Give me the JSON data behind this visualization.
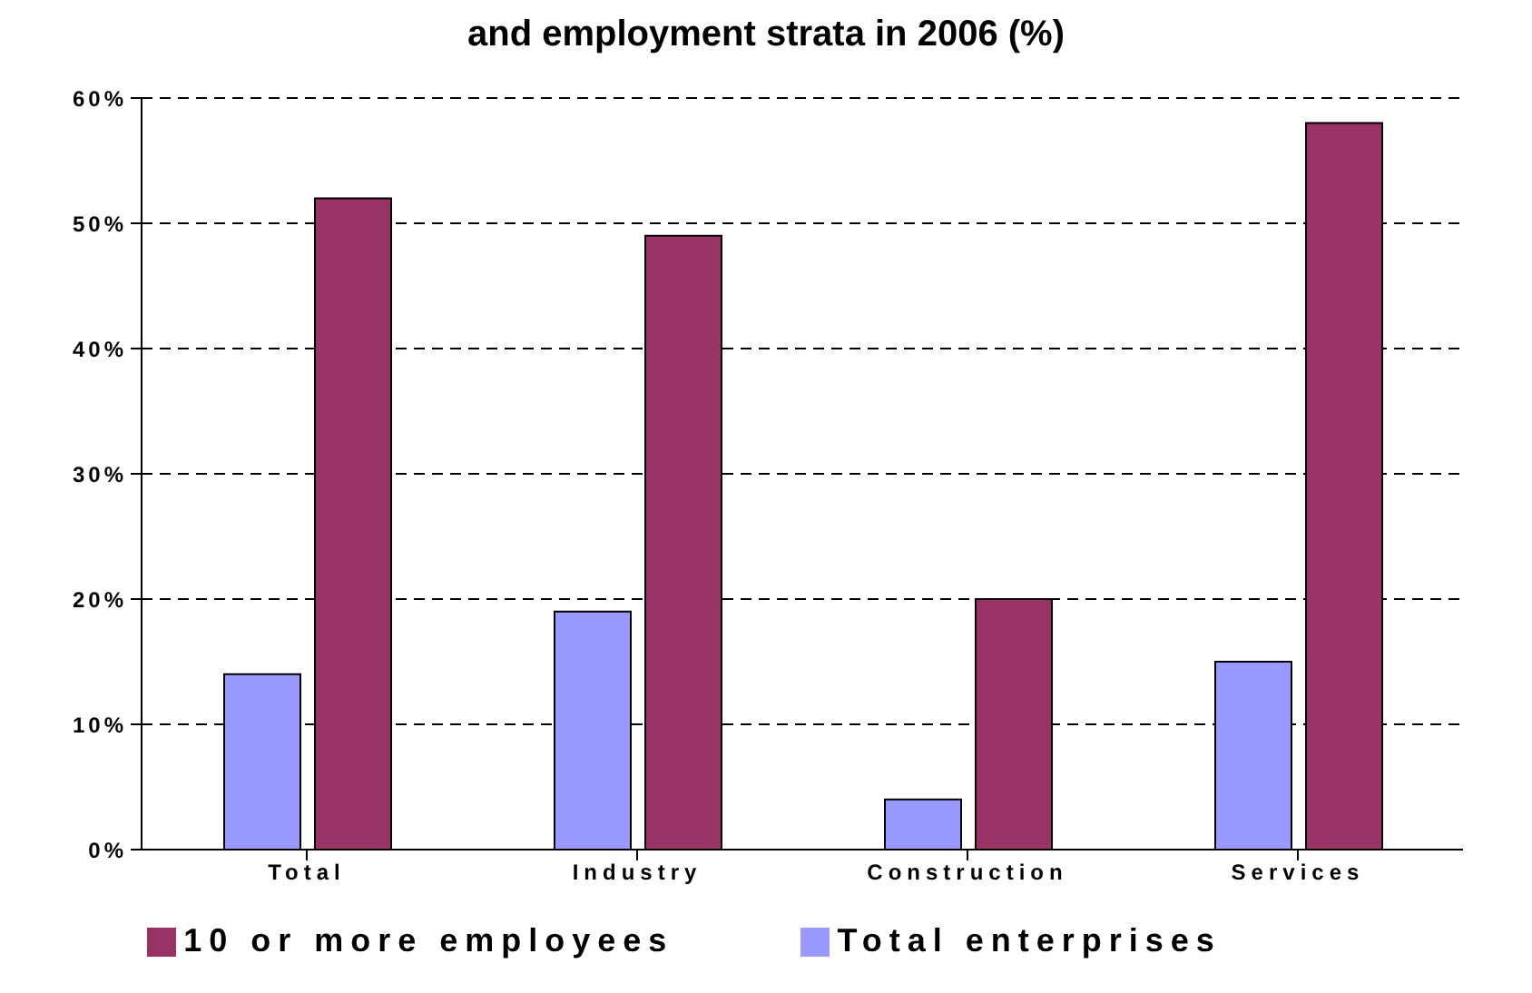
{
  "chart_data": {
    "type": "bar",
    "title": "and employment strata in 2006 (%)",
    "categories": [
      "Total",
      "Industry",
      "Construction",
      "Services"
    ],
    "series": [
      {
        "name": "Total enterprises",
        "color": "#9999ff",
        "values": [
          14,
          19,
          4,
          15
        ]
      },
      {
        "name": "10 or more employees",
        "color": "#993366",
        "values": [
          52,
          49,
          20,
          58
        ]
      }
    ],
    "ylim": [
      0,
      60
    ],
    "yticks": [
      {
        "value": 0,
        "label": "0%"
      },
      {
        "value": 10,
        "label": "10%"
      },
      {
        "value": 20,
        "label": "20%"
      },
      {
        "value": 30,
        "label": "30%"
      },
      {
        "value": 40,
        "label": "40%"
      },
      {
        "value": 50,
        "label": "50%"
      },
      {
        "value": 60,
        "label": "60%"
      }
    ],
    "grid": "y",
    "legend": "bottom"
  }
}
